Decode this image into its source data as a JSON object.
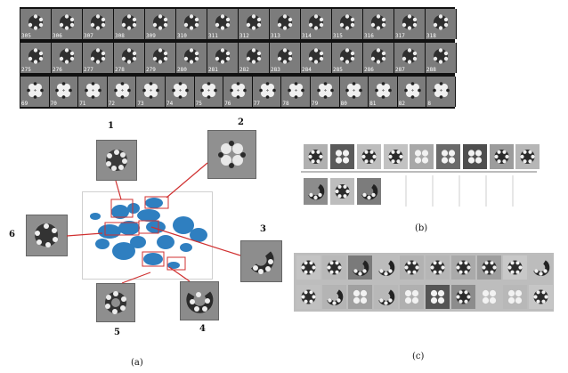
{
  "strip": {
    "row1_labels": [
      "305",
      "306",
      "307",
      "308",
      "309",
      "310",
      "311",
      "312",
      "313",
      "314",
      "315",
      "316",
      "317",
      "318"
    ],
    "row2_labels": [
      "275",
      "276",
      "277",
      "278",
      "279",
      "280",
      "281",
      "282",
      "283",
      "284",
      "285",
      "286",
      "287",
      "288"
    ],
    "row3_labels": [
      "69",
      "70",
      "71",
      "72",
      "73",
      "74",
      "75",
      "76",
      "77",
      "78",
      "79",
      "80",
      "81",
      "82",
      "8"
    ]
  },
  "panel_a": {
    "numbers": [
      "1",
      "2",
      "3",
      "4",
      "5",
      "6"
    ],
    "caption": "(a)"
  },
  "panel_b": {
    "caption": "(b)"
  },
  "panel_c": {
    "caption": "(c)"
  },
  "colors": {
    "cluster_blue": "#2f7fc0",
    "highlight_red": "#d03030"
  }
}
